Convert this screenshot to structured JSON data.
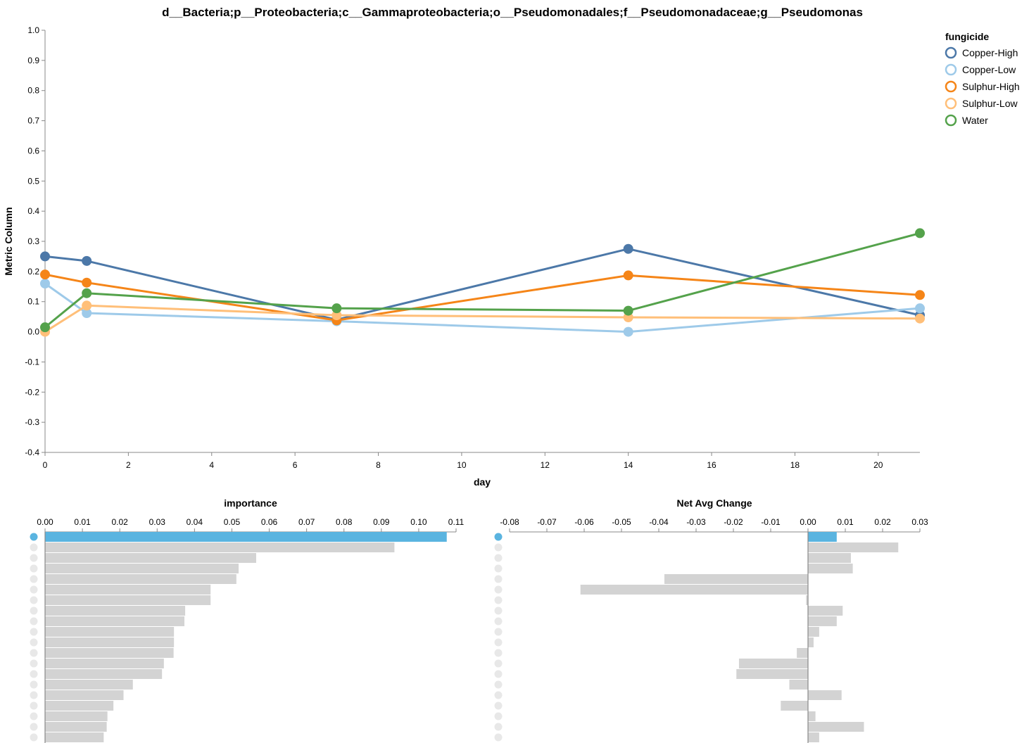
{
  "chart_data": [
    {
      "type": "line",
      "title": "d__Bacteria;p__Proteobacteria;c__Gammaproteobacteria;o__Pseudomonadales;f__Pseudomonadaceae;g__Pseudomonas",
      "xlabel": "day",
      "ylabel": "Metric Column",
      "xlim": [
        0,
        21
      ],
      "ylim": [
        -0.4,
        1.0
      ],
      "x_ticks": [
        0,
        2,
        4,
        6,
        8,
        10,
        12,
        14,
        16,
        18,
        20
      ],
      "y_ticks": [
        "1.0",
        "0.9",
        "0.8",
        "0.7",
        "0.6",
        "0.5",
        "0.4",
        "0.3",
        "0.2",
        "0.1",
        "0.0",
        "-0.1",
        "-0.2",
        "-0.3",
        "-0.4"
      ],
      "grid": false,
      "legend": {
        "title": "fungicide",
        "placement": "top-right"
      },
      "series": [
        {
          "name": "Copper-High",
          "color": "#4c78a8",
          "x": [
            0,
            1,
            7,
            14,
            21
          ],
          "y": [
            0.25,
            0.235,
            0.04,
            0.275,
            0.055
          ]
        },
        {
          "name": "Copper-Low",
          "color": "#9ecae9",
          "x": [
            0,
            1,
            7,
            14,
            21
          ],
          "y": [
            0.16,
            0.062,
            0.035,
            0.0,
            0.078
          ]
        },
        {
          "name": "Sulphur-High",
          "color": "#f58518",
          "x": [
            0,
            1,
            7,
            14,
            21
          ],
          "y": [
            0.19,
            0.163,
            0.038,
            0.187,
            0.122
          ]
        },
        {
          "name": "Sulphur-Low",
          "color": "#ffbf79",
          "x": [
            0,
            1,
            7,
            14,
            21
          ],
          "y": [
            0.0,
            0.087,
            0.055,
            0.048,
            0.044
          ]
        },
        {
          "name": "Water",
          "color": "#54a24b",
          "x": [
            0,
            1,
            7,
            14,
            21
          ],
          "y": [
            0.015,
            0.128,
            0.078,
            0.07,
            0.327
          ]
        }
      ]
    },
    {
      "type": "bar",
      "orientation": "horizontal",
      "title": "importance",
      "xlim": [
        0,
        0.11
      ],
      "x_ticks": [
        "0.00",
        "0.01",
        "0.02",
        "0.03",
        "0.04",
        "0.05",
        "0.06",
        "0.07",
        "0.08",
        "0.09",
        "0.10",
        "0.11"
      ],
      "highlight_color": "#5ab4e0",
      "bar_color": "#d3d3d3",
      "values": [
        0.1075,
        0.0935,
        0.0565,
        0.0518,
        0.0512,
        0.0443,
        0.0443,
        0.0375,
        0.0373,
        0.0345,
        0.0345,
        0.0344,
        0.0318,
        0.0313,
        0.0235,
        0.021,
        0.0183,
        0.0167,
        0.0165,
        0.0157
      ],
      "highlighted": [
        0
      ]
    },
    {
      "type": "bar",
      "orientation": "horizontal",
      "title": "Net Avg Change",
      "xlim": [
        -0.08,
        0.03
      ],
      "x_ticks": [
        "-0.08",
        "-0.07",
        "-0.06",
        "-0.05",
        "-0.04",
        "-0.03",
        "-0.02",
        "-0.01",
        "0.00",
        "0.01",
        "0.02",
        "0.03"
      ],
      "highlight_color": "#5ab4e0",
      "bar_color": "#d3d3d3",
      "values": [
        0.0077,
        0.0242,
        0.0115,
        0.012,
        -0.0385,
        -0.061,
        -0.0005,
        0.0093,
        0.0077,
        0.003,
        0.0015,
        -0.003,
        -0.0185,
        -0.0192,
        -0.005,
        0.009,
        -0.0073,
        0.002,
        0.015,
        0.003
      ],
      "highlighted": [
        0
      ]
    }
  ]
}
